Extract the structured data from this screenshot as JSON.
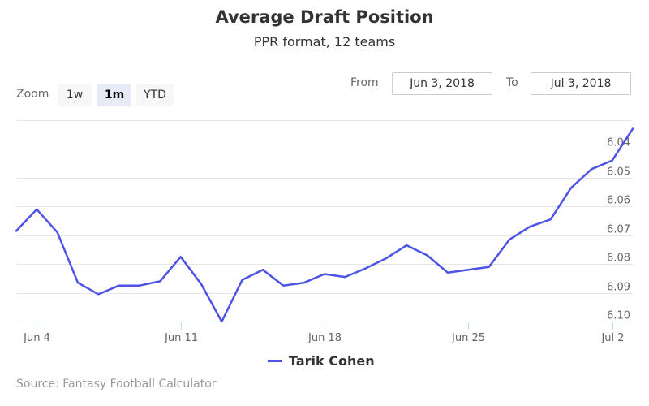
{
  "chart_data": {
    "type": "line",
    "title": "Average Draft Position",
    "subtitle": "PPR format, 12 teams",
    "xlabel": "",
    "ylabel": "",
    "y_reversed": true,
    "ylim": [
      6.1,
      6.03
    ],
    "y_ticks": [
      "6.04",
      "6.05",
      "6.06",
      "6.07",
      "6.08",
      "6.09",
      "6.10"
    ],
    "y_tick_values": [
      6.04,
      6.05,
      6.06,
      6.07,
      6.08,
      6.09,
      6.1
    ],
    "x_ticks": [
      "Jun 4",
      "Jun 11",
      "Jun 18",
      "Jun 25",
      "Jul 2"
    ],
    "x_tick_dates": [
      "2018-06-04",
      "2018-06-11",
      "2018-06-18",
      "2018-06-25",
      "2018-07-02"
    ],
    "xlim": [
      "2018-06-03",
      "2018-07-03"
    ],
    "grid": true,
    "legend_position": "bottom-center",
    "series": [
      {
        "name": "Tarik Cohen",
        "color": "#4c53e6",
        "dates": [
          "2018-06-03",
          "2018-06-04",
          "2018-06-05",
          "2018-06-06",
          "2018-06-07",
          "2018-06-08",
          "2018-06-09",
          "2018-06-10",
          "2018-06-11",
          "2018-06-12",
          "2018-06-13",
          "2018-06-14",
          "2018-06-15",
          "2018-06-16",
          "2018-06-17",
          "2018-06-18",
          "2018-06-19",
          "2018-06-20",
          "2018-06-21",
          "2018-06-22",
          "2018-06-23",
          "2018-06-24",
          "2018-06-25",
          "2018-06-26",
          "2018-06-27",
          "2018-06-28",
          "2018-06-29",
          "2018-06-30",
          "2018-07-01",
          "2018-07-02",
          "2018-07-03"
        ],
        "values": [
          6.0685,
          6.061,
          6.069,
          6.0865,
          6.0905,
          6.0875,
          6.0875,
          6.086,
          6.0775,
          6.087,
          6.1,
          6.0855,
          6.082,
          6.0875,
          6.0865,
          6.0835,
          6.0845,
          6.0815,
          6.078,
          6.0735,
          6.077,
          6.083,
          6.082,
          6.081,
          6.0715,
          6.067,
          6.0645,
          6.0535,
          6.047,
          6.044,
          6.033
        ]
      }
    ]
  },
  "zoom": {
    "label": "Zoom",
    "buttons": [
      "1w",
      "1m",
      "YTD"
    ],
    "selected": "1m"
  },
  "range": {
    "from_label": "From",
    "from_value": "Jun 3, 2018",
    "to_label": "To",
    "to_value": "Jul 3, 2018"
  },
  "credits": "Source: Fantasy Football Calculator"
}
